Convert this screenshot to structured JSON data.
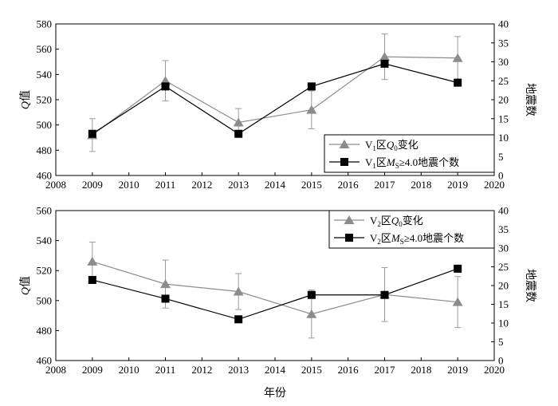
{
  "figure": {
    "xlabel": "年份"
  },
  "chart_data": [
    {
      "type": "line",
      "panel": "top",
      "x_ticks": [
        "2008",
        "2009",
        "2010",
        "2011",
        "2012",
        "2013",
        "2014",
        "2015",
        "2016",
        "2017",
        "2018",
        "2019",
        "2020"
      ],
      "xlim": [
        2008,
        2020
      ],
      "left_axis": {
        "label_italic": "Q",
        "label_rest": "值",
        "ylim": [
          460,
          580
        ],
        "ticks": [
          "460",
          "480",
          "500",
          "520",
          "540",
          "560",
          "580"
        ]
      },
      "right_axis": {
        "label": "地震数",
        "ylim": [
          0,
          40
        ],
        "ticks": [
          "0",
          "5",
          "10",
          "15",
          "20",
          "25",
          "30",
          "35",
          "40"
        ]
      },
      "series": [
        {
          "name": "V1区Q0变化",
          "legend": {
            "main": "V",
            "sub1": "1",
            "mid": "区",
            "ital": "Q",
            "sub2": "0",
            "tail": "变化"
          },
          "axis": "left",
          "marker": "triangle",
          "color": "#8c8c8c",
          "x": [
            2009,
            2011,
            2013,
            2015,
            2017,
            2019
          ],
          "y": [
            492,
            535,
            502,
            512,
            554,
            553
          ],
          "err": [
            13,
            16,
            11,
            15,
            18,
            17
          ]
        },
        {
          "name": "V1区MS≥4.0地震个数",
          "legend": {
            "main": "V",
            "sub1": "1",
            "mid": "区",
            "ital": "M",
            "sub2": "S",
            "tail": "≥4.0地震个数"
          },
          "axis": "right",
          "marker": "square",
          "color": "#000000",
          "x": [
            2009,
            2011,
            2013,
            2015,
            2017,
            2019
          ],
          "y": [
            11,
            23.5,
            11,
            23.5,
            29.5,
            24.5
          ]
        }
      ]
    },
    {
      "type": "line",
      "panel": "bottom",
      "x_ticks": [
        "2008",
        "2009",
        "2010",
        "2011",
        "2012",
        "2013",
        "2014",
        "2015",
        "2016",
        "2017",
        "2018",
        "2019",
        "2020"
      ],
      "xlim": [
        2008,
        2020
      ],
      "left_axis": {
        "label_italic": "Q",
        "label_rest": "值",
        "ylim": [
          460,
          560
        ],
        "ticks": [
          "460",
          "480",
          "500",
          "520",
          "540",
          "560"
        ]
      },
      "right_axis": {
        "label": "地震数",
        "ylim": [
          0,
          40
        ],
        "ticks": [
          "0",
          "5",
          "10",
          "15",
          "20",
          "25",
          "30",
          "35",
          "40"
        ]
      },
      "series": [
        {
          "name": "V2区Q0变化",
          "legend": {
            "main": "V",
            "sub1": "2",
            "mid": "区",
            "ital": "Q",
            "sub2": "0",
            "tail": "变化"
          },
          "axis": "left",
          "marker": "triangle",
          "color": "#8c8c8c",
          "x": [
            2009,
            2011,
            2013,
            2015,
            2017,
            2019
          ],
          "y": [
            526,
            511,
            506,
            491,
            504,
            499
          ],
          "err": [
            13,
            16,
            12,
            16,
            18,
            17
          ]
        },
        {
          "name": "V2区MS≥4.0地震个数",
          "legend": {
            "main": "V",
            "sub1": "2",
            "mid": "区",
            "ital": "M",
            "sub2": "S",
            "tail": "≥4.0地震个数"
          },
          "axis": "right",
          "marker": "square",
          "color": "#000000",
          "x": [
            2009,
            2011,
            2013,
            2015,
            2017,
            2019
          ],
          "y": [
            21.5,
            16.5,
            11,
            17.5,
            17.5,
            24.5
          ]
        }
      ]
    }
  ]
}
